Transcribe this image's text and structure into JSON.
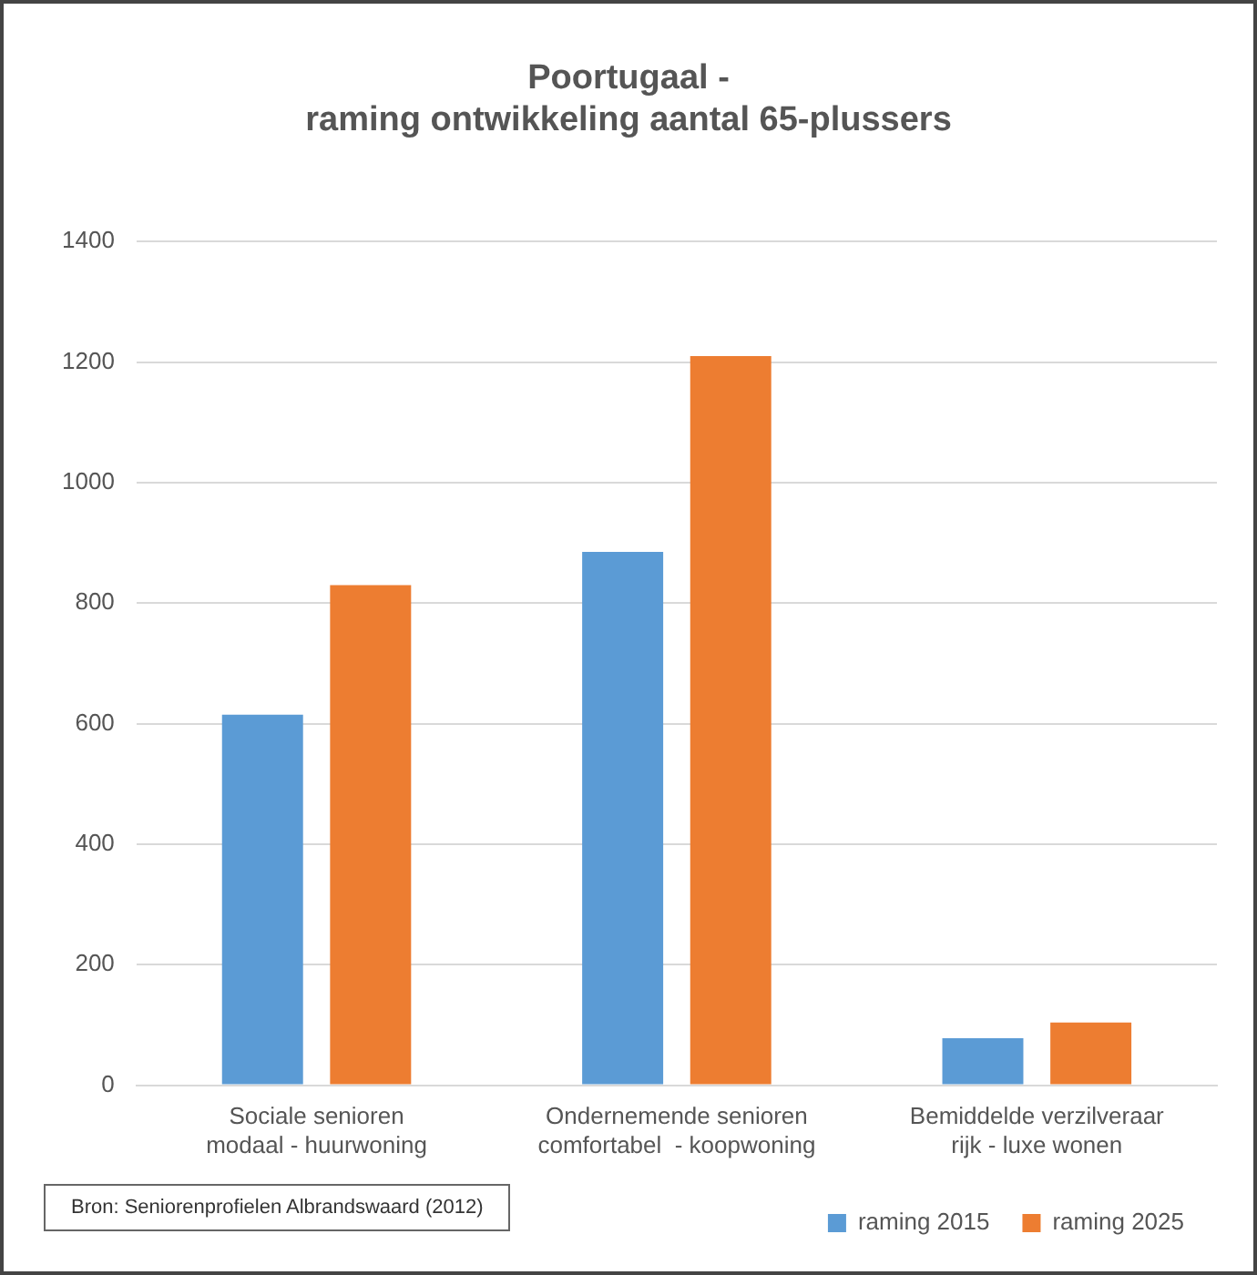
{
  "chart_data": {
    "type": "bar",
    "title": "Poortugaal -\nraming ontwikkeling aantal 65-plussers",
    "categories": [
      "Sociale senioren\nmodaal - huurwoning",
      "Ondernemende senioren\ncomfortabel  - koopwoning",
      "Bemiddelde verzilveraar\nrijk - luxe wonen"
    ],
    "series": [
      {
        "name": "raming 2015",
        "color": "#5b9bd5",
        "values": [
          615,
          885,
          78
        ]
      },
      {
        "name": "raming 2025",
        "color": "#ed7d31",
        "values": [
          830,
          1210,
          104
        ]
      }
    ],
    "ylim": [
      0,
      1400
    ],
    "yticks": [
      0,
      200,
      400,
      600,
      800,
      1000,
      1200,
      1400
    ],
    "grid": "y",
    "legend": "bottom right",
    "annotations": [
      "Bron:  Seniorenprofielen Albrandswaard (2012)"
    ]
  }
}
